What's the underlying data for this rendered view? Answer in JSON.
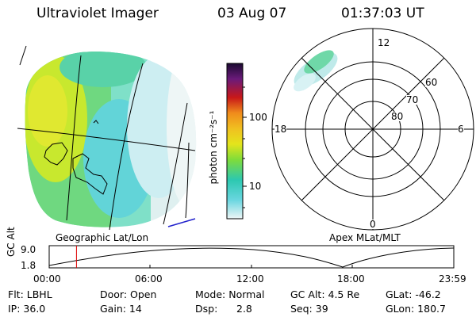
{
  "header": {
    "instrument": "Ultraviolet Imager",
    "date": "03 Aug 07",
    "time": "01:37:03 UT"
  },
  "geo_panel": {
    "label": "Geographic Lat/Lon"
  },
  "colorbar": {
    "unit": "photon cm⁻²s⁻¹",
    "ticks": [
      "100",
      "10"
    ],
    "colors": [
      "#1a0a30",
      "#3b1560",
      "#6a1a7a",
      "#9a1040",
      "#c81818",
      "#e05018",
      "#f08c1c",
      "#f0c020",
      "#e4e41c",
      "#b8e62a",
      "#7fdc3a",
      "#4ad27a",
      "#2cc8b0",
      "#6ad6e0",
      "#b0e8f0",
      "#e8f4f6"
    ]
  },
  "polar_panel": {
    "label": "Apex MLat/MLT",
    "mlt_labels": {
      "top": "12",
      "left": "18",
      "right": "6",
      "bottom": "0"
    },
    "lat_labels": [
      "60",
      "70",
      "80"
    ]
  },
  "alt_plot": {
    "ylabel": "GC Alt",
    "yticks": [
      "9.0",
      "1.8"
    ],
    "xticks": [
      "00:00",
      "06:00",
      "12:00",
      "18:00",
      "23:59"
    ],
    "current_time_marker": "01:37:03",
    "marker_color": "#dd0000"
  },
  "info": {
    "filter": "Flt: LBHL",
    "ip": "IP: 36.0",
    "door": "Door: Open",
    "gain": "Gain: 14",
    "mode": "Mode: Normal",
    "dsp_label": "Dsp:",
    "dsp_value": "2.8",
    "gc_alt": "GC Alt: 4.5 Re",
    "seq": "Seq: 39",
    "glat": "GLat: -46.2",
    "glon": "GLon: 180.7"
  }
}
